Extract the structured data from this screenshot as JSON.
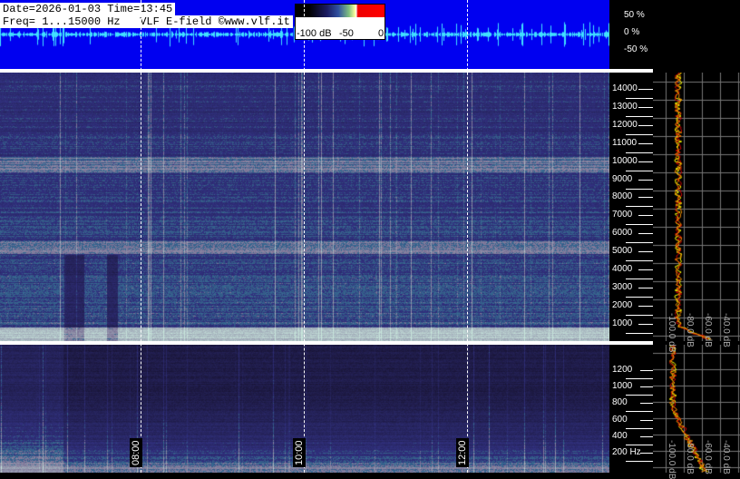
{
  "header": {
    "date_time": "Date=2026-01-03 Time=13:45",
    "freq_line": "Freq= 1...15000 Hz   VLF E-field ©www.vlf.it"
  },
  "colorbar": {
    "labels": [
      "-100 dB",
      "-50",
      "0"
    ]
  },
  "waveform": {
    "scale_labels": [
      "50 %",
      "0 %",
      "-50 %"
    ],
    "background": "#0000f0",
    "trace_color": "#40e0ff"
  },
  "main_axis": {
    "labels": [
      "14000",
      "13000",
      "12000",
      "11000",
      "10000",
      "9000",
      "8000",
      "7000",
      "6000",
      "5000",
      "4000",
      "3000",
      "2000",
      "1000"
    ]
  },
  "low_axis": {
    "labels": [
      "1200",
      "1000",
      "800",
      "600",
      "400",
      "200 Hz"
    ]
  },
  "profile_db_labels": [
    "-100.0 dB",
    "-80.0 dB",
    "-60.0 dB",
    "-40.0 dB",
    "-20.0 dB"
  ],
  "time_labels": [
    "08:00",
    "10:00",
    "12:00"
  ]
}
